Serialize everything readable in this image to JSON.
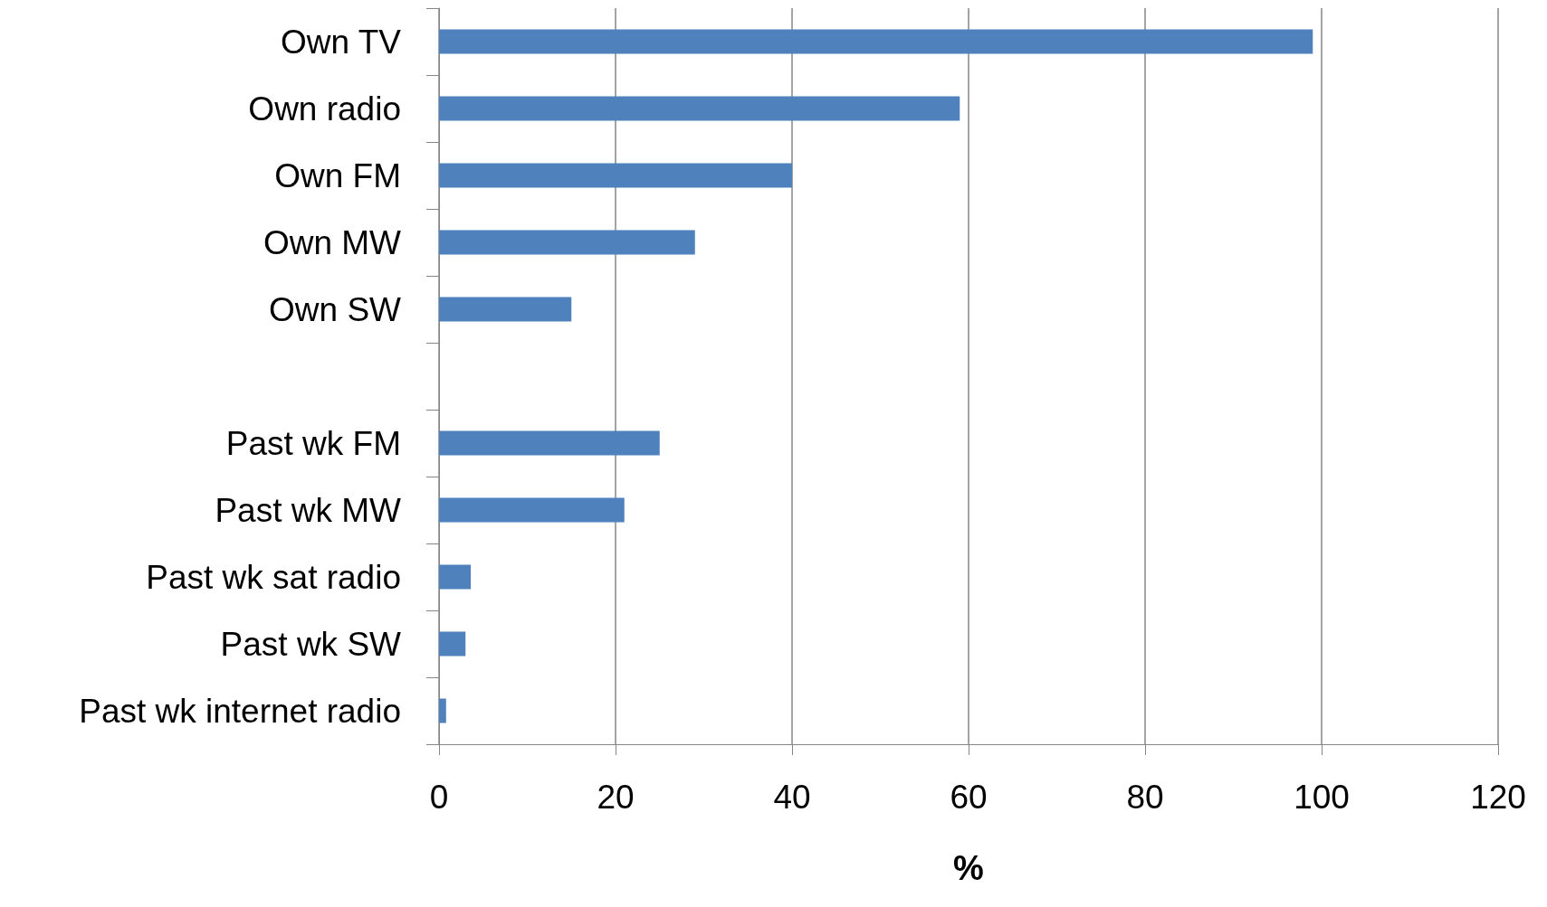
{
  "chart_data": {
    "type": "bar",
    "orientation": "horizontal",
    "xlabel": "%",
    "categories": [
      "Own TV",
      "Own radio",
      "Own FM",
      "Own MW",
      "Own SW",
      null,
      "Past wk FM",
      "Past wk MW",
      "Past wk sat radio",
      "Past wk SW",
      "Past wk internet radio"
    ],
    "values": [
      99,
      59,
      40,
      29,
      15,
      null,
      25,
      21,
      3.6,
      3,
      0.8
    ],
    "color": "#4f81bd",
    "xlim": [
      0,
      120
    ],
    "xticks": [
      0,
      20,
      40,
      60,
      80,
      100,
      120
    ],
    "grid": "x"
  }
}
